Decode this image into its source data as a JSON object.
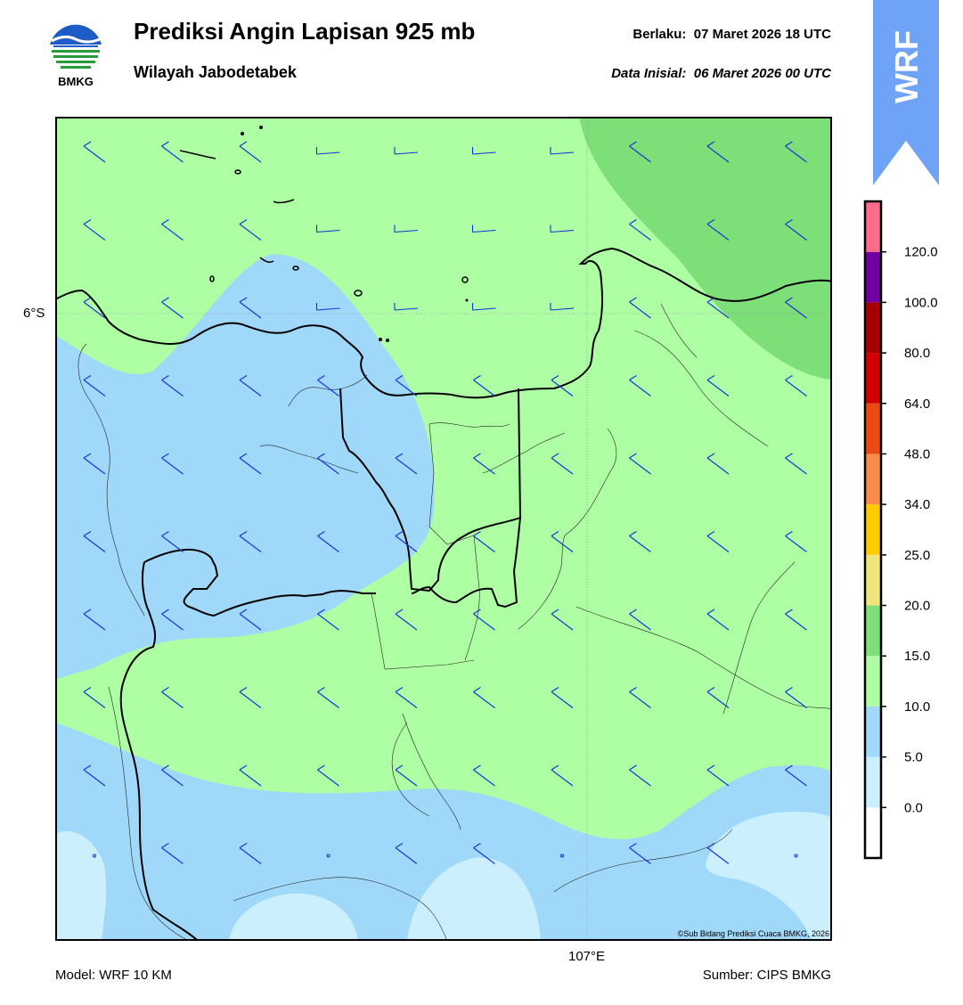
{
  "header": {
    "logo_text": "BMKG",
    "title": "Prediksi Angin Lapisan 925 mb",
    "subtitle": "Wilayah Jabodetabek",
    "valid_label": "Berlaku:",
    "valid_value": "07 Maret 2026 18 UTC",
    "init_label": "Data Inisial:",
    "init_value": "06 Maret 2026 00 UTC",
    "model_badge": "WRF"
  },
  "map": {
    "lat_label": "6°S",
    "lon_label": "107°E",
    "copyright": "©Sub Bidang Prediksi Cuaca BMKG, 2026",
    "colors": {
      "speed_0_5": "#cceffe",
      "speed_5_10": "#a0d8fa",
      "speed_10_15": "#aefea3",
      "speed_15_20": "#7ddf78",
      "coastline": "#000000",
      "barb": "#1a2fd8"
    }
  },
  "colorbar": {
    "levels": [
      "0.0",
      "5.0",
      "10.0",
      "15.0",
      "20.0",
      "25.0",
      "34.0",
      "48.0",
      "64.0",
      "80.0",
      "100.0",
      "120.0"
    ],
    "colors": [
      "#ffffff",
      "#cceffe",
      "#a0d8fa",
      "#aefea3",
      "#7ddf78",
      "#efe57a",
      "#ffcc00",
      "#f98b4b",
      "#ea4b13",
      "#d00000",
      "#a40000",
      "#7000a0",
      "#ff6b8a"
    ]
  },
  "footer": {
    "model": "Model: WRF 10 KM",
    "source": "Sumber: CIPS BMKG"
  }
}
